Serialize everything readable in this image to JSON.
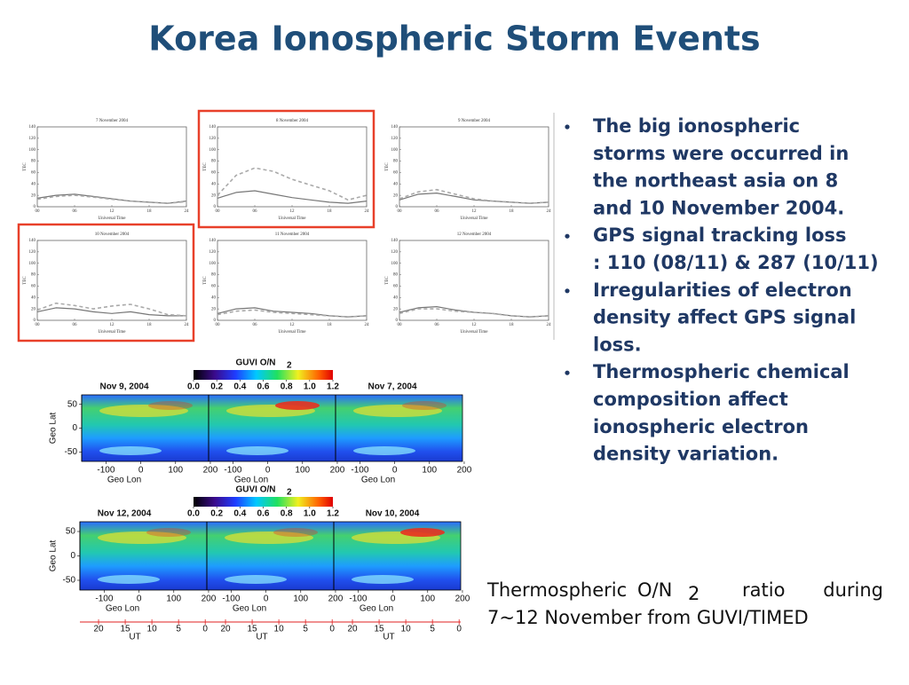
{
  "title": "Korea Ionospheric Storm Events",
  "tec_panels": {
    "type": "line",
    "x_label": "Universal Time",
    "y_label": "TEC",
    "hours": [
      0,
      3,
      6,
      9,
      12,
      15,
      18,
      21,
      24
    ],
    "xlim": [
      0,
      24
    ],
    "ylim": [
      0,
      140
    ],
    "xticks": [
      {
        "value": 0,
        "label": "00"
      },
      {
        "value": 6,
        "label": "06"
      },
      12,
      18,
      24
    ],
    "yticks": [
      0,
      20,
      40,
      60,
      80,
      100,
      120,
      140
    ],
    "panels": [
      {
        "title": "7 November 2004",
        "highlighted": false,
        "series": [
          {
            "style": "solid",
            "color": "#777777",
            "values": [
              15,
              20,
              22,
              18,
              14,
              10,
              8,
              6,
              10
            ]
          },
          {
            "style": "dashed",
            "color": "#aaaaaa",
            "values": [
              13,
              18,
              20,
              17,
              13,
              10,
              8,
              6,
              9
            ]
          }
        ]
      },
      {
        "title": "8 November 2004",
        "highlighted": true,
        "series": [
          {
            "style": "solid",
            "color": "#777777",
            "values": [
              15,
              25,
              28,
              22,
              16,
              12,
              8,
              6,
              10
            ]
          },
          {
            "style": "dashed",
            "color": "#aaaaaa",
            "values": [
              20,
              55,
              68,
              62,
              48,
              38,
              28,
              12,
              20
            ]
          }
        ]
      },
      {
        "title": "9 November 2004",
        "highlighted": false,
        "series": [
          {
            "style": "solid",
            "color": "#777777",
            "values": [
              12,
              22,
              24,
              18,
              12,
              10,
              8,
              6,
              8
            ]
          },
          {
            "style": "dashed",
            "color": "#aaaaaa",
            "values": [
              14,
              26,
              30,
              22,
              14,
              10,
              8,
              6,
              8
            ]
          }
        ]
      },
      {
        "title": "10 November 2004",
        "highlighted": true,
        "series": [
          {
            "style": "solid",
            "color": "#777777",
            "values": [
              15,
              22,
              20,
              15,
              12,
              15,
              10,
              8,
              8
            ]
          },
          {
            "style": "dashed",
            "color": "#aaaaaa",
            "values": [
              18,
              30,
              26,
              20,
              25,
              28,
              20,
              10,
              8
            ]
          }
        ]
      },
      {
        "title": "11 November 2004",
        "highlighted": false,
        "series": [
          {
            "style": "solid",
            "color": "#777777",
            "values": [
              12,
              20,
              22,
              16,
              14,
              12,
              8,
              6,
              8
            ]
          },
          {
            "style": "dashed",
            "color": "#aaaaaa",
            "values": [
              10,
              16,
              18,
              14,
              12,
              10,
              8,
              6,
              8
            ]
          }
        ]
      },
      {
        "title": "12 November 2004",
        "highlighted": false,
        "series": [
          {
            "style": "solid",
            "color": "#777777",
            "values": [
              14,
              22,
              24,
              18,
              14,
              12,
              8,
              6,
              8
            ]
          },
          {
            "style": "dashed",
            "color": "#aaaaaa",
            "values": [
              12,
              20,
              20,
              16,
              14,
              12,
              8,
              6,
              8
            ]
          }
        ]
      }
    ]
  },
  "maps": {
    "colorbar_label": "GUVI O/N",
    "colorbar_label_sub": "2",
    "colorbar_lim": [
      0,
      1.2
    ],
    "colorbar_ticks": [
      {
        "value": 0,
        "label": "0.0"
      },
      0.2,
      0.4,
      0.6,
      0.8,
      {
        "value": 1,
        "label": "1.0"
      },
      1.2
    ],
    "lat_label": "Geo Lat",
    "lat_lim": [
      -70,
      70
    ],
    "lat_ticks": [
      50,
      0,
      -50
    ],
    "lon_label": "Geo Lon",
    "lon_lim": [
      -170,
      195
    ],
    "lon_ticks": [
      -100,
      0,
      100,
      200
    ],
    "ut_label": "UT",
    "ut_lim": [
      23.5,
      -0.3
    ],
    "ut_ticks": [
      20,
      15,
      10,
      5,
      0
    ],
    "rows": [
      {
        "left_date": "Nov 9, 2004",
        "right_date": "Nov 7, 2004",
        "ut_axis": false
      },
      {
        "left_date": "Nov 12, 2004",
        "right_date": "Nov 10, 2004",
        "ut_axis": true
      }
    ]
  },
  "bullets": [
    [
      "The big ionospheric",
      "storms were occurred in",
      "the northeast asia on 8",
      "and 10 November 2004."
    ],
    [
      "GPS signal tracking loss",
      ": 110 (08/11) & 287 (10/11)"
    ],
    [
      "Irregularities of electron",
      "density affect GPS signal",
      "loss."
    ],
    [
      "Thermospheric chemical",
      "composition affect",
      "ionospheric electron",
      "density variation."
    ]
  ],
  "caption": {
    "line1": [
      "Thermospheric",
      "O/N",
      "2",
      "ratio",
      "during"
    ],
    "line2": "7~12 November from GUVI/TIMED"
  }
}
